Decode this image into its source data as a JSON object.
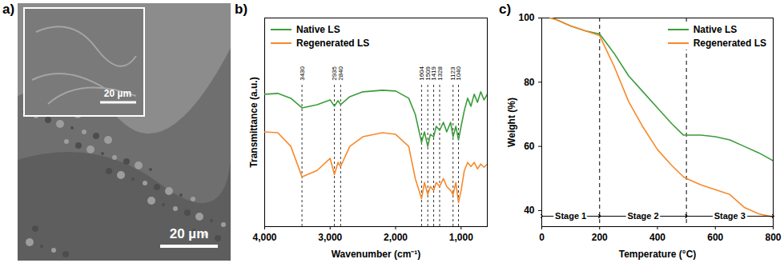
{
  "chart_data": [
    {
      "type": "image",
      "panel_label": "a)",
      "scale_bar": "20 µm",
      "inset_scale_bar": "20 µm"
    },
    {
      "type": "line",
      "panel_label": "b)",
      "x_label": "Wavenumber (cm⁻¹)",
      "y_label": "Transmittance (a.u.)",
      "xlim": [
        4000,
        600
      ],
      "xticks": [
        4000,
        3000,
        2000,
        1000
      ],
      "ylim": [
        0,
        260
      ],
      "tick_labels": "x",
      "legend": "top-left",
      "peak_markers": [
        3430,
        2935,
        2840,
        1604,
        1509,
        1419,
        1328,
        1123,
        1040
      ],
      "x": [
        4000,
        3800,
        3600,
        3430,
        3200,
        3000,
        2935,
        2880,
        2840,
        2700,
        2500,
        2200,
        2000,
        1800,
        1700,
        1604,
        1560,
        1509,
        1470,
        1419,
        1380,
        1328,
        1270,
        1220,
        1160,
        1123,
        1080,
        1040,
        1000,
        950,
        900,
        850,
        800,
        750,
        700,
        650,
        600
      ],
      "series": [
        {
          "name": "Native LS",
          "color": "#3a9d3a",
          "values": [
            165,
            166,
            160,
            148,
            152,
            158,
            150,
            157,
            152,
            162,
            168,
            170,
            169,
            160,
            140,
            105,
            118,
            100,
            115,
            112,
            125,
            120,
            130,
            118,
            130,
            112,
            125,
            108,
            125,
            145,
            160,
            150,
            165,
            155,
            168,
            158,
            165
          ]
        },
        {
          "name": "Regenerated LS",
          "color": "#f7892b",
          "values": [
            118,
            117,
            100,
            62,
            70,
            85,
            65,
            80,
            75,
            100,
            112,
            117,
            115,
            100,
            60,
            35,
            55,
            40,
            50,
            45,
            55,
            50,
            60,
            50,
            45,
            40,
            55,
            30,
            45,
            70,
            80,
            75,
            80,
            72,
            78,
            74,
            78
          ]
        }
      ]
    },
    {
      "type": "line",
      "panel_label": "c)",
      "x_label": "Temperature (°C)",
      "y_label": "Weight (%)",
      "xlim": [
        0,
        800
      ],
      "xticks": [
        0,
        200,
        400,
        600,
        800
      ],
      "ylim": [
        35,
        100
      ],
      "yticks": [
        40,
        60,
        80,
        100
      ],
      "legend": "top-right",
      "dividers": [
        200,
        500
      ],
      "stages": [
        {
          "label": "Stage 1",
          "range": [
            0,
            200
          ]
        },
        {
          "label": "Stage 2",
          "range": [
            200,
            500
          ]
        },
        {
          "label": "Stage 3",
          "range": [
            500,
            800
          ]
        }
      ],
      "x": [
        30,
        50,
        100,
        150,
        200,
        250,
        300,
        350,
        400,
        450,
        490,
        500,
        550,
        600,
        650,
        700,
        750,
        800
      ],
      "series": [
        {
          "name": "Native LS",
          "color": "#3a9d3a",
          "values": [
            100,
            99.5,
            97.5,
            96,
            95,
            89,
            82,
            77,
            72,
            67,
            63.5,
            63.5,
            63.5,
            63,
            62,
            60,
            58,
            55.5
          ]
        },
        {
          "name": "Regenerated LS",
          "color": "#f7892b",
          "values": [
            100,
            99.5,
            97.5,
            96,
            94.5,
            85,
            74,
            66,
            59,
            54,
            50.5,
            50,
            48,
            46.5,
            45,
            41,
            39,
            38
          ]
        }
      ]
    }
  ]
}
